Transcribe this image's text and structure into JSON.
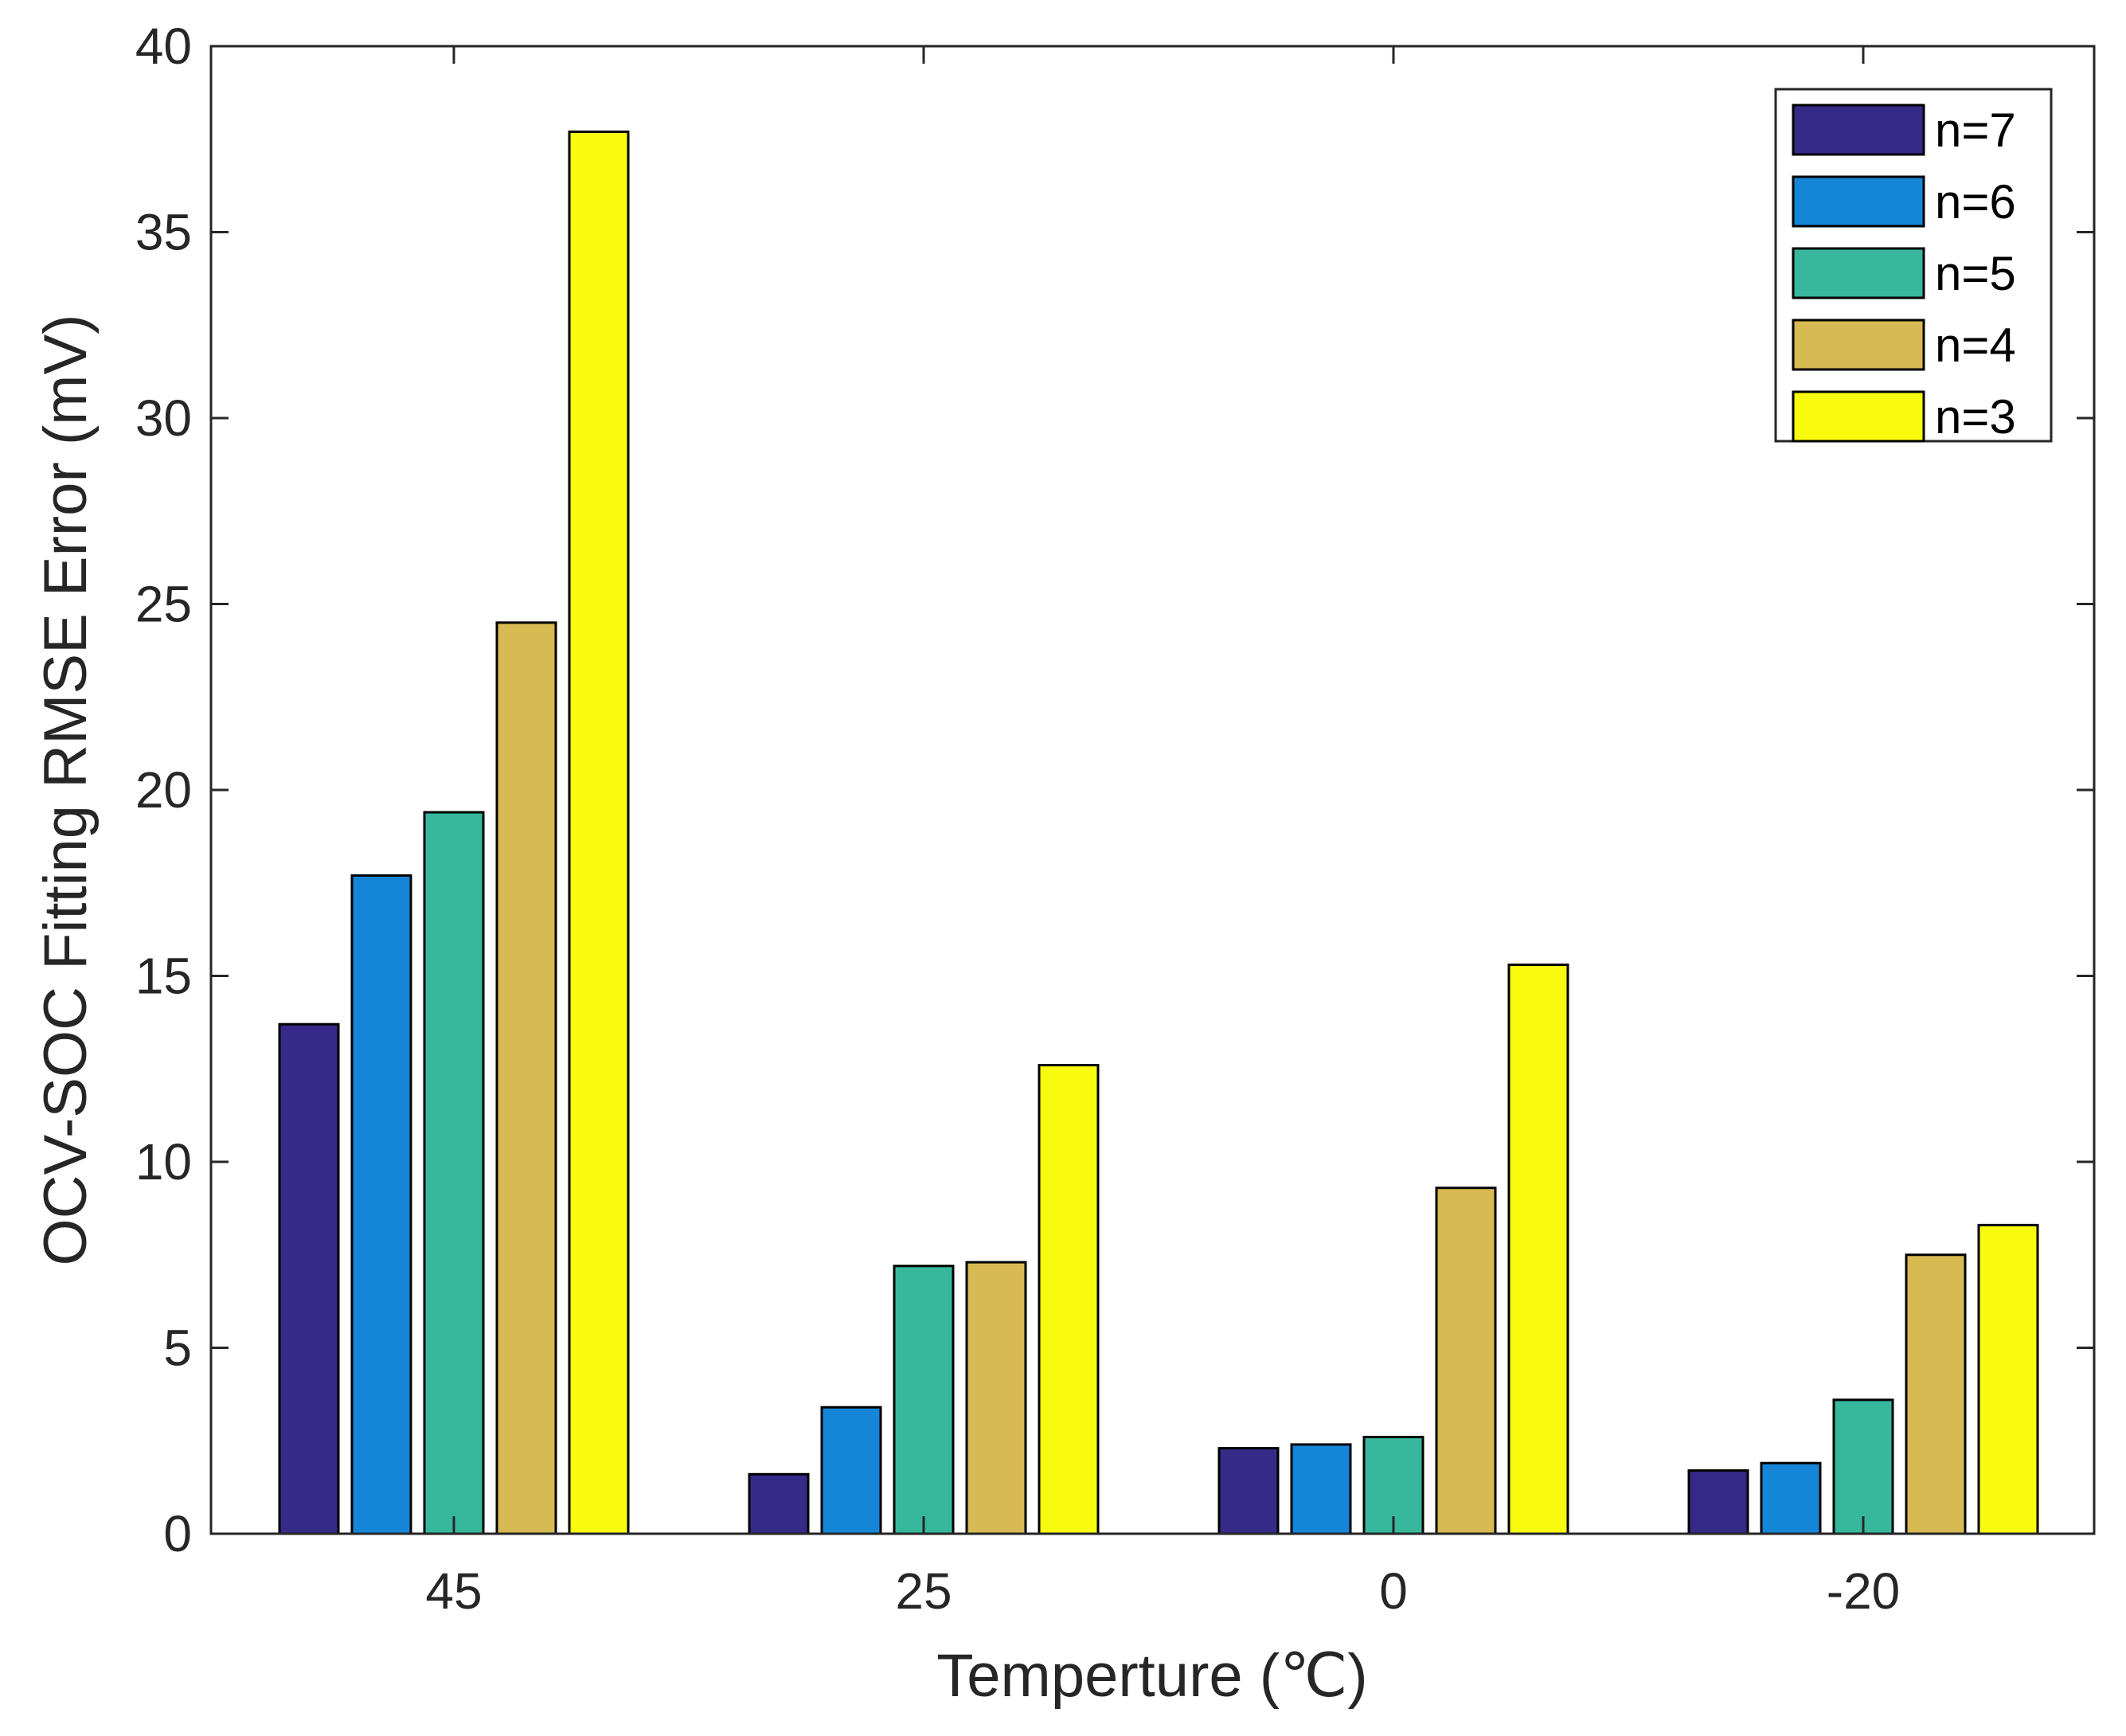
{
  "chart_data": {
    "type": "bar",
    "title": "",
    "xlabel": "Temperture (℃)",
    "ylabel": "OCV-SOC Fitting RMSE Error (mV)",
    "categories": [
      "45",
      "25",
      "0",
      "-20"
    ],
    "ylim": [
      0,
      40
    ],
    "yticks": [
      0,
      5,
      10,
      15,
      20,
      25,
      30,
      35,
      40
    ],
    "grid": false,
    "legend_position": "top-right",
    "series": [
      {
        "name": "n=7",
        "color": "#352a87",
        "values": [
          13.7,
          1.6,
          2.3,
          1.7
        ]
      },
      {
        "name": "n=6",
        "color": "#1585d8",
        "values": [
          17.7,
          3.4,
          2.4,
          1.9
        ]
      },
      {
        "name": "n=5",
        "color": "#37b89d",
        "values": [
          19.4,
          7.2,
          2.6,
          3.6
        ]
      },
      {
        "name": "n=4",
        "color": "#d7ba52",
        "values": [
          24.5,
          7.3,
          9.3,
          7.5
        ]
      },
      {
        "name": "n=3",
        "color": "#f9fb0e",
        "values": [
          37.7,
          12.6,
          15.3,
          8.3
        ]
      }
    ]
  }
}
